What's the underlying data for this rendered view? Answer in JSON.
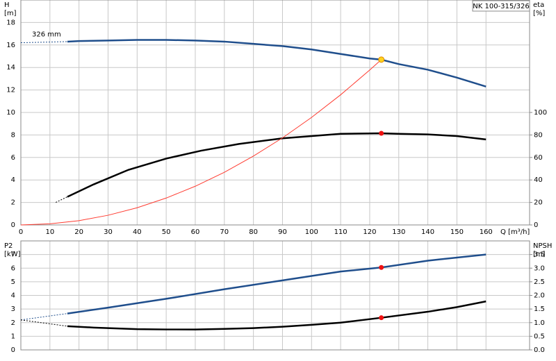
{
  "title": "NK 100-315/326",
  "chart_data": [
    {
      "type": "line",
      "xlabel": "Q [m³/h]",
      "ylabel": "H",
      "yunit": "[m]",
      "y2label": "eta",
      "y2unit": "[%]",
      "xlim": [
        0,
        175
      ],
      "xticks": [
        0,
        10,
        20,
        30,
        40,
        50,
        60,
        70,
        80,
        90,
        100,
        110,
        120,
        130,
        140,
        150,
        160
      ],
      "show_xtick_labels": true,
      "ylim": [
        0,
        20
      ],
      "yticks": [
        0,
        2,
        4,
        6,
        8,
        10,
        12,
        14,
        16,
        18
      ],
      "y2lim": [
        0,
        200
      ],
      "y2ticks": [
        0,
        20,
        40,
        60,
        80,
        100
      ],
      "grid": true,
      "series": [
        {
          "name": "326 mm",
          "color": "#1f4e8c",
          "axis": "y",
          "width": 2.5,
          "segments": [
            {
              "style": "dashed",
              "x": [
                0,
                16
              ],
              "values": [
                16.2,
                16.3
              ]
            },
            {
              "style": "solid",
              "x": [
                16,
                20,
                30,
                40,
                50,
                60,
                70,
                80,
                90,
                100,
                110,
                120,
                124,
                130,
                140,
                150,
                160
              ],
              "values": [
                16.3,
                16.35,
                16.4,
                16.45,
                16.45,
                16.4,
                16.3,
                16.1,
                15.9,
                15.6,
                15.2,
                14.8,
                14.7,
                14.3,
                13.8,
                13.1,
                12.3
              ]
            }
          ]
        },
        {
          "color": "#000000",
          "axis": "y2",
          "width": 2.5,
          "segments": [
            {
              "style": "dashed",
              "x": [
                12,
                16
              ],
              "values": [
                20,
                25
              ]
            },
            {
              "style": "solid",
              "x": [
                16,
                25,
                37,
                50,
                62,
                75,
                90,
                100,
                110,
                124,
                130,
                140,
                150,
                160
              ],
              "values": [
                25,
                36,
                49,
                59,
                66,
                72,
                77,
                79,
                81,
                81.5,
                81,
                80.5,
                79,
                76
              ]
            }
          ]
        },
        {
          "color": "#ff3b30",
          "axis": "y",
          "width": 1,
          "segments": [
            {
              "style": "solid",
              "x": [
                0,
                10,
                20,
                30,
                40,
                50,
                60,
                70,
                80,
                90,
                100,
                110,
                120,
                124
              ],
              "values": [
                0,
                0.1,
                0.38,
                0.86,
                1.53,
                2.39,
                3.44,
                4.68,
                6.12,
                7.74,
                9.56,
                11.57,
                13.77,
                14.7
              ]
            }
          ]
        }
      ],
      "points": [
        {
          "x": 124,
          "value": 14.7,
          "axis": "y",
          "color": "#ffd21f"
        },
        {
          "x": 124,
          "value": 81.5,
          "axis": "y2",
          "color": "#ee1111"
        }
      ]
    },
    {
      "type": "line",
      "ylabel": "P2",
      "yunit": "[kW]",
      "y2label": "NPSH",
      "y2unit": "[m]",
      "xlim": [
        0,
        175
      ],
      "xticks": [
        0,
        10,
        20,
        30,
        40,
        50,
        60,
        70,
        80,
        90,
        100,
        110,
        120,
        130,
        140,
        150,
        160
      ],
      "show_xtick_labels": false,
      "ylim": [
        0,
        8
      ],
      "yticks": [
        0,
        1,
        2,
        3,
        4,
        5,
        6,
        7
      ],
      "y2lim": [
        0,
        4
      ],
      "y2ticks": [
        {
          "value": 0,
          "label": "0.0"
        },
        0.5,
        {
          "value": 1,
          "label": "1.0"
        },
        1.5,
        {
          "value": 2,
          "label": "2.0"
        },
        2.5,
        {
          "value": 3,
          "label": "3.0"
        },
        3.5
      ],
      "grid": true,
      "series": [
        {
          "color": "#1f4e8c",
          "axis": "y",
          "width": 2.5,
          "segments": [
            {
              "style": "dashed",
              "x": [
                0,
                16
              ],
              "values": [
                2.2,
                2.67
              ]
            },
            {
              "style": "solid",
              "x": [
                16,
                30,
                50,
                70,
                90,
                110,
                124,
                140,
                160
              ],
              "values": [
                2.67,
                3.1,
                3.75,
                4.45,
                5.1,
                5.75,
                6.05,
                6.55,
                7.0
              ]
            }
          ]
        },
        {
          "color": "#000000",
          "axis": "y2",
          "width": 2.5,
          "segments": [
            {
              "style": "dashed",
              "x": [
                0,
                16
              ],
              "values": [
                1.1,
                0.87
              ]
            },
            {
              "style": "solid",
              "x": [
                16,
                25,
                40,
                50,
                60,
                70,
                80,
                90,
                100,
                110,
                124,
                140,
                150,
                160
              ],
              "values": [
                0.87,
                0.82,
                0.76,
                0.75,
                0.75,
                0.77,
                0.8,
                0.85,
                0.92,
                1.0,
                1.18,
                1.4,
                1.57,
                1.78
              ]
            }
          ]
        }
      ],
      "points": [
        {
          "x": 124,
          "value": 6.05,
          "axis": "y",
          "color": "#ee1111"
        },
        {
          "x": 124,
          "value": 1.18,
          "axis": "y2",
          "color": "#ee1111"
        }
      ]
    }
  ]
}
